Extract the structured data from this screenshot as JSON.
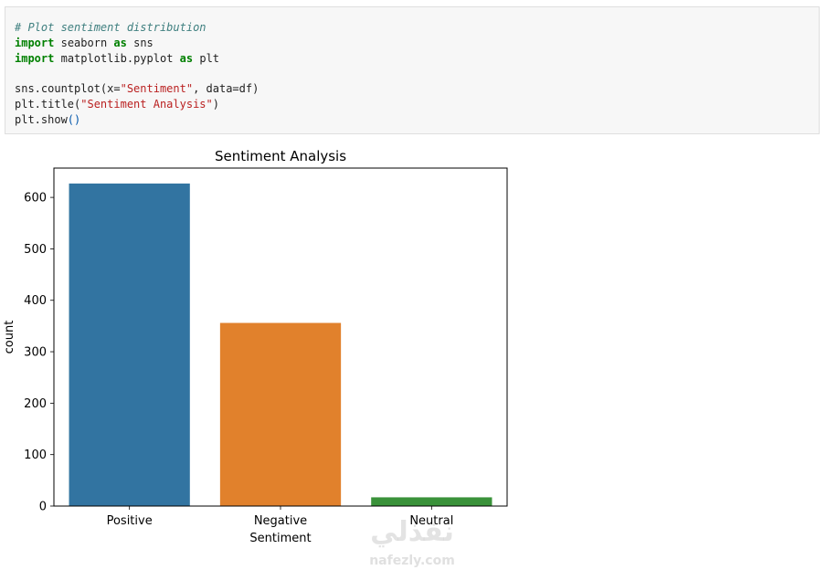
{
  "code": {
    "comment": "# Plot sentiment distribution",
    "kw_import": "import",
    "kw_as": "as",
    "mod_seaborn": "seaborn",
    "alias_sns": "sns",
    "mod_matplotlib": "matplotlib.pyplot",
    "alias_plt": "plt",
    "call_countplot_prefix": "sns.countplot(x=",
    "str_sentiment": "\"Sentiment\"",
    "call_countplot_suffix": ", data=df)",
    "call_title_prefix": "plt.title(",
    "str_title": "\"Sentiment Analysis\"",
    "call_title_suffix": ")",
    "call_show": "plt.show",
    "parens": "()"
  },
  "chart_data": {
    "type": "bar",
    "title": "Sentiment Analysis",
    "xlabel": "Sentiment",
    "ylabel": "count",
    "categories": [
      "Positive",
      "Negative",
      "Neutral"
    ],
    "values": [
      627,
      356,
      17
    ],
    "colors": [
      "#3274a1",
      "#e1812c",
      "#3a923a"
    ],
    "ylim": [
      0,
      657
    ],
    "yticks": [
      0,
      100,
      200,
      300,
      400,
      500,
      600
    ],
    "grid": false
  },
  "watermark": {
    "arabic": "نفذلي",
    "latin": "nafezly.com"
  }
}
